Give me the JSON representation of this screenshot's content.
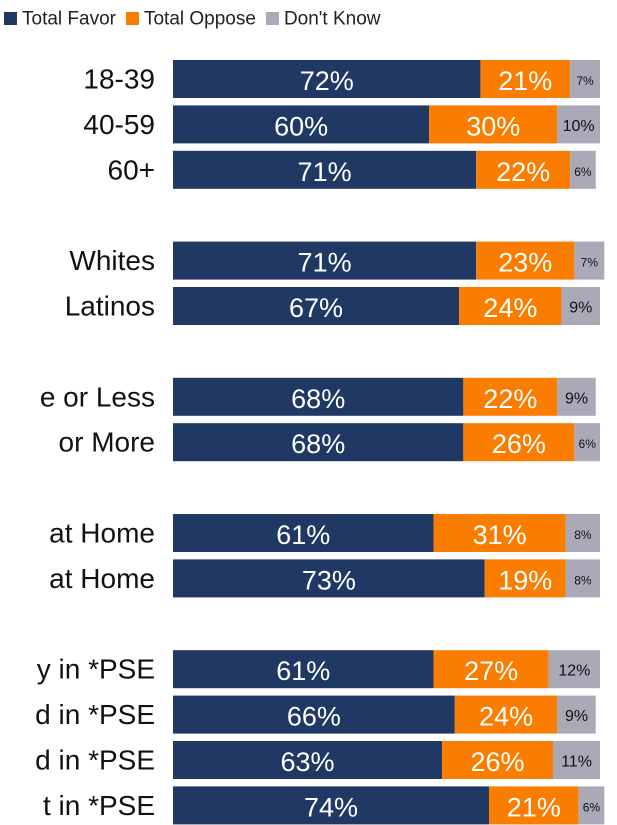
{
  "chart_data": {
    "type": "stacked-bar-horizontal",
    "categories": [
      "18-39",
      "40-59",
      "60+",
      null,
      "Whites",
      "Latinos",
      null,
      "e or Less",
      "or More",
      null,
      "at Home",
      "at Home",
      null,
      "y in *PSE",
      "d in *PSE",
      "d in *PSE",
      "t in *PSE"
    ],
    "xlim": [
      0,
      100
    ],
    "legend": "top",
    "series": [
      {
        "name": "Total Favor",
        "color": "#203864",
        "values": [
          72,
          60,
          71,
          null,
          71,
          67,
          null,
          68,
          68,
          null,
          61,
          73,
          null,
          61,
          66,
          63,
          74
        ],
        "value_labels": [
          "72%",
          "60%",
          "71%",
          null,
          "71%",
          "67%",
          null,
          "68%",
          "68%",
          null,
          "61%",
          "73%",
          null,
          "61%",
          "66%",
          "63%",
          "74%"
        ]
      },
      {
        "name": "Total Oppose",
        "color": "#fa7d00",
        "values": [
          21,
          30,
          22,
          null,
          23,
          24,
          null,
          22,
          26,
          null,
          31,
          19,
          null,
          27,
          24,
          26,
          21
        ],
        "value_labels": [
          "21%",
          "30%",
          "22%",
          null,
          "23%",
          "24%",
          null,
          "22%",
          "26%",
          null,
          "31%",
          "19%",
          null,
          "27%",
          "24%",
          "26%",
          "21%"
        ]
      },
      {
        "name": "Don't Know",
        "color": "#a9a9b8",
        "values": [
          7,
          10,
          6,
          null,
          7,
          9,
          null,
          9,
          6,
          null,
          8,
          8,
          null,
          12,
          9,
          11,
          6
        ],
        "value_labels": [
          "7%",
          "10%",
          "6%",
          null,
          "7%",
          "9%",
          null,
          "9%",
          "6%",
          null,
          "8%",
          "8%",
          null,
          "12%",
          "9%",
          "11%",
          "6%"
        ]
      }
    ]
  }
}
